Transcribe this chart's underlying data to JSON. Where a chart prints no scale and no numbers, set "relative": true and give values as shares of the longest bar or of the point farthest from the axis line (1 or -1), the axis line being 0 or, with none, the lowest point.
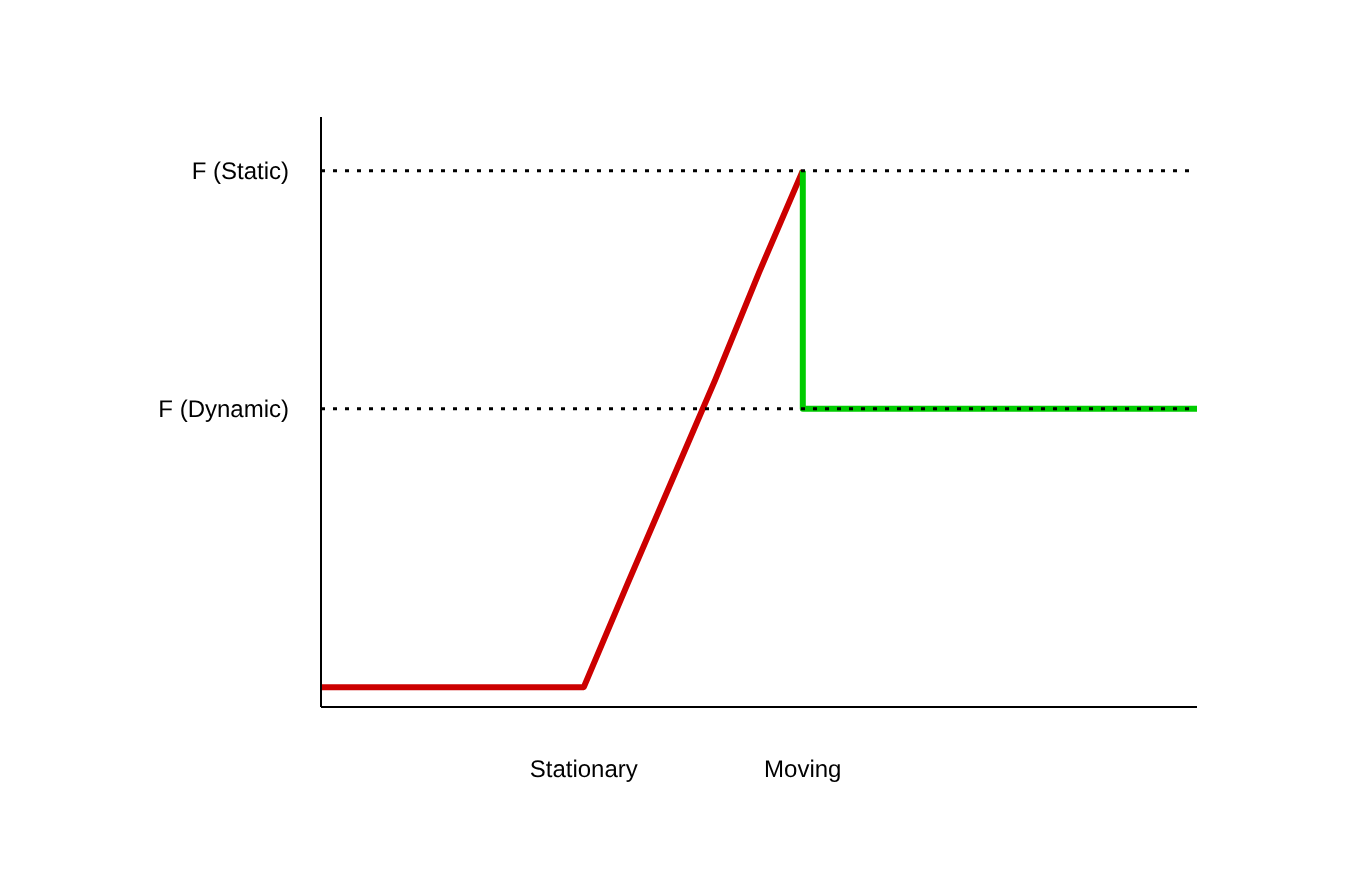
{
  "chart_data": {
    "type": "line",
    "relative": true,
    "categories": [
      null,
      null,
      null,
      null,
      null,
      null,
      "Stationary",
      null,
      null,
      null,
      null,
      "Moving",
      null,
      null,
      null,
      null,
      null,
      null,
      null,
      null,
      null
    ],
    "series": [
      {
        "color": "#cc0000",
        "values": [
          0.037,
          0.037,
          0.037,
          0.037,
          0.037,
          0.037,
          0.037,
          0.23,
          0.42,
          0.61,
          0.81,
          1,
          null,
          null,
          null,
          null,
          null,
          null,
          null,
          null,
          null
        ]
      },
      {
        "type": "step",
        "color": "#00cc00",
        "values": [
          null,
          null,
          null,
          null,
          null,
          null,
          null,
          null,
          null,
          null,
          null,
          1,
          0.556,
          0.556,
          0.556,
          0.556,
          0.556,
          0.556,
          0.556,
          0.556,
          0.556
        ]
      }
    ],
    "ref_lines": [
      {
        "axis": "y",
        "value": 1,
        "label": "F (Static)",
        "line_style": "dotted",
        "color": "#000000"
      },
      {
        "axis": "y",
        "value": 0.556,
        "label": "F (Dynamic)",
        "line_style": "dotted",
        "color": "#000000"
      }
    ],
    "grid": false,
    "marker": "none",
    "line_style": "solid"
  }
}
